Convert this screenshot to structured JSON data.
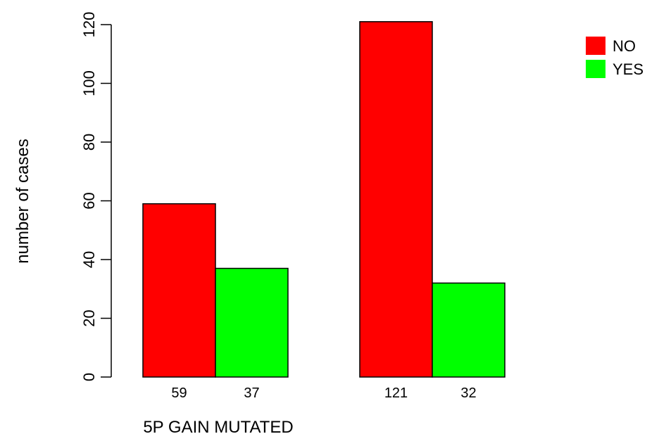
{
  "chart_data": {
    "type": "bar",
    "title": "",
    "xlabel": "5P GAIN MUTATED",
    "ylabel": "number of cases",
    "ylim": [
      0,
      120
    ],
    "yticks": [
      0,
      20,
      40,
      60,
      80,
      100,
      120
    ],
    "grid": false,
    "legend_position": "top-right",
    "series": [
      {
        "name": "NO",
        "color": "#ff0000"
      },
      {
        "name": "YES",
        "color": "#00ff00"
      }
    ],
    "groups": [
      {
        "values": [
          59,
          37
        ],
        "labels": [
          "59",
          "37"
        ]
      },
      {
        "values": [
          121,
          32
        ],
        "labels": [
          "121",
          "32"
        ]
      }
    ]
  }
}
